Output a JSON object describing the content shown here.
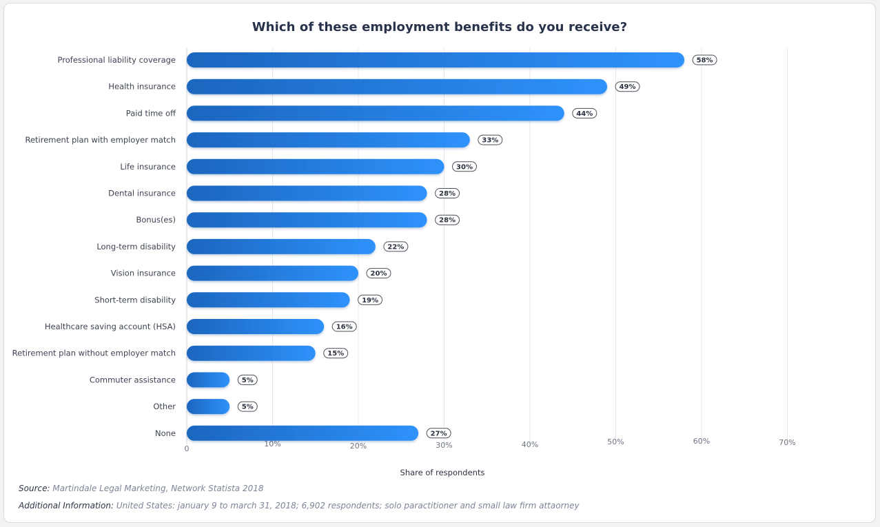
{
  "chart_data": {
    "type": "bar",
    "orientation": "horizontal",
    "title": "Which of these employment benefits do you receive?",
    "xlabel": "Share of respondents",
    "ylabel": "",
    "xlim": [
      0,
      70
    ],
    "x_ticks": [
      "0",
      "10%",
      "20%",
      "30%",
      "40%",
      "50%",
      "60%",
      "70%"
    ],
    "grid": true,
    "categories": [
      "Professional liability coverage",
      "Health insurance",
      "Paid time off",
      "Retirement plan with employer match",
      "Life insurance",
      "Dental insurance",
      "Bonus(es)",
      "Long-term disability",
      "Vision insurance",
      "Short-term disability",
      "Healthcare saving account (HSA)",
      "Retirement plan without employer match",
      "Commuter assistance",
      "Other",
      "None"
    ],
    "values": [
      58,
      49,
      44,
      33,
      30,
      28,
      28,
      22,
      20,
      19,
      16,
      15,
      5,
      5,
      27
    ],
    "value_labels": [
      "58%",
      "49%",
      "44%",
      "33%",
      "30%",
      "28%",
      "28%",
      "22%",
      "20%",
      "19%",
      "16%",
      "15%",
      "5%",
      "5%",
      "27%"
    ],
    "colors": {
      "bar_start": "#1c66bf",
      "bar_end": "#2e92fb",
      "grid": "#e6e8ec",
      "axis_text": "#6d7483",
      "category_text": "#3d4352"
    }
  },
  "footer": {
    "source_key": "Source:",
    "source_value": "Martindale Legal Marketing, Network Statista 2018",
    "info_key": "Additional Information:",
    "info_value": "United States: january 9 to march 31, 2018; 6,902 respondents; solo paractitioner and small law firm attaorney"
  }
}
